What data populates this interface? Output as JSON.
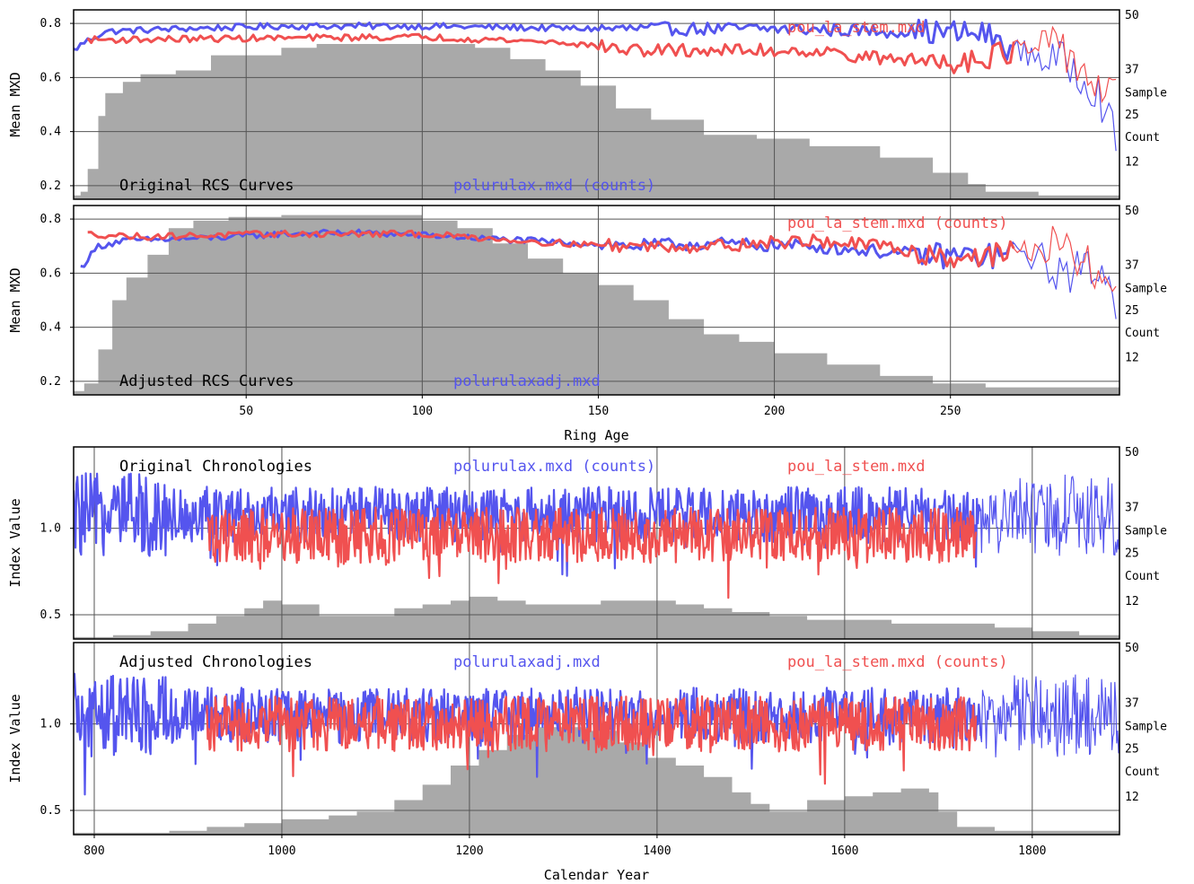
{
  "colors": {
    "blue": "#5555ee",
    "red": "#f05050",
    "gray": "#a9a9a9",
    "grid": "#555555"
  },
  "chart_data": [
    {
      "type": "line",
      "panel": "top",
      "title": "Original RCS Curves",
      "legend_blue": "polurulax.mxd (counts)",
      "legend_red": "pou_la_stem.mxd",
      "xlabel": "",
      "ylabel": "Mean MXD",
      "right_ticks": [
        "50",
        "37",
        "Sample",
        "25",
        "Count",
        "12"
      ],
      "xlim": [
        1,
        298
      ],
      "ylim": [
        0.15,
        0.85
      ],
      "yticks": [
        "0.2",
        "0.4",
        "0.6",
        "0.8"
      ],
      "count_ylim": [
        0,
        50
      ],
      "series": [
        {
          "anchors": [
            [
              1,
              0.7
            ],
            [
              4,
              0.73
            ],
            [
              10,
              0.77
            ],
            [
              30,
              0.78
            ],
            [
              60,
              0.79
            ],
            [
              100,
              0.79
            ],
            [
              150,
              0.78
            ],
            [
              200,
              0.78
            ],
            [
              240,
              0.77
            ],
            [
              260,
              0.76
            ],
            [
              268,
              0.7
            ],
            [
              275,
              0.68
            ],
            [
              285,
              0.64
            ],
            [
              292,
              0.55
            ],
            [
              297,
              0.36
            ]
          ]
        },
        {
          "anchors": [
            [
              5,
              0.74
            ],
            [
              15,
              0.74
            ],
            [
              50,
              0.745
            ],
            [
              100,
              0.75
            ],
            [
              140,
              0.73
            ],
            [
              160,
              0.7
            ],
            [
              180,
              0.7
            ],
            [
              210,
              0.7
            ],
            [
              230,
              0.67
            ],
            [
              250,
              0.66
            ],
            [
              270,
              0.7
            ],
            [
              282,
              0.71
            ],
            [
              292,
              0.56
            ],
            [
              297,
              0.53
            ]
          ]
        }
      ],
      "sample_count": [
        [
          1,
          1
        ],
        [
          3,
          2
        ],
        [
          5,
          8
        ],
        [
          8,
          22
        ],
        [
          10,
          28
        ],
        [
          15,
          31
        ],
        [
          20,
          33
        ],
        [
          30,
          34
        ],
        [
          40,
          38
        ],
        [
          60,
          40
        ],
        [
          70,
          41
        ],
        [
          80,
          41
        ],
        [
          100,
          41
        ],
        [
          115,
          40
        ],
        [
          125,
          37
        ],
        [
          135,
          34
        ],
        [
          145,
          30
        ],
        [
          155,
          24
        ],
        [
          165,
          21
        ],
        [
          180,
          17
        ],
        [
          195,
          16
        ],
        [
          210,
          14
        ],
        [
          230,
          11
        ],
        [
          245,
          7
        ],
        [
          255,
          4
        ],
        [
          260,
          2
        ],
        [
          270,
          2
        ],
        [
          275,
          1
        ],
        [
          298,
          1
        ]
      ]
    },
    {
      "type": "line",
      "panel": "second",
      "title": "Adjusted RCS Curves",
      "legend_blue": "polurulaxadj.mxd",
      "legend_red": "pou_la_stem.mxd (counts)",
      "xlabel": "Ring Age",
      "ylabel": "Mean MXD",
      "right_ticks": [
        "50",
        "37",
        "Sample",
        "25",
        "Count",
        "12"
      ],
      "xlim": [
        1,
        298
      ],
      "ylim": [
        0.15,
        0.85
      ],
      "yticks": [
        "0.2",
        "0.4",
        "0.6",
        "0.8"
      ],
      "xticks": [
        "50",
        "100",
        "150",
        "200",
        "250"
      ],
      "count_ylim": [
        0,
        50
      ],
      "series": [
        {
          "anchors": [
            [
              3,
              0.62
            ],
            [
              8,
              0.7
            ],
            [
              15,
              0.72
            ],
            [
              40,
              0.73
            ],
            [
              60,
              0.745
            ],
            [
              80,
              0.75
            ],
            [
              100,
              0.74
            ],
            [
              130,
              0.72
            ],
            [
              160,
              0.7
            ],
            [
              180,
              0.71
            ],
            [
              210,
              0.7
            ],
            [
              240,
              0.67
            ],
            [
              260,
              0.66
            ],
            [
              270,
              0.68
            ],
            [
              282,
              0.6
            ],
            [
              292,
              0.62
            ],
            [
              297,
              0.5
            ]
          ]
        },
        {
          "anchors": [
            [
              5,
              0.745
            ],
            [
              20,
              0.735
            ],
            [
              60,
              0.745
            ],
            [
              100,
              0.745
            ],
            [
              140,
              0.71
            ],
            [
              160,
              0.7
            ],
            [
              180,
              0.7
            ],
            [
              210,
              0.72
            ],
            [
              230,
              0.7
            ],
            [
              250,
              0.66
            ],
            [
              265,
              0.67
            ],
            [
              280,
              0.7
            ],
            [
              292,
              0.6
            ],
            [
              297,
              0.53
            ]
          ]
        }
      ],
      "sample_count": [
        [
          1,
          1
        ],
        [
          4,
          3
        ],
        [
          8,
          12
        ],
        [
          12,
          25
        ],
        [
          16,
          31
        ],
        [
          22,
          37
        ],
        [
          28,
          44
        ],
        [
          35,
          46
        ],
        [
          45,
          47
        ],
        [
          60,
          47.5
        ],
        [
          80,
          47.5
        ],
        [
          100,
          46
        ],
        [
          110,
          44
        ],
        [
          120,
          40
        ],
        [
          130,
          36
        ],
        [
          140,
          32
        ],
        [
          150,
          29
        ],
        [
          160,
          25
        ],
        [
          170,
          20
        ],
        [
          180,
          16
        ],
        [
          190,
          14
        ],
        [
          200,
          11
        ],
        [
          215,
          8
        ],
        [
          230,
          5
        ],
        [
          245,
          3
        ],
        [
          260,
          2
        ],
        [
          298,
          1.5
        ]
      ]
    },
    {
      "type": "line",
      "panel": "third",
      "title": "Original Chronologies",
      "legend_blue": "polurulax.mxd (counts)",
      "legend_red": "pou_la_stem.mxd",
      "xlabel": "",
      "ylabel": "Index Value",
      "right_ticks": [
        "50",
        "37",
        "Sample",
        "25",
        "Count",
        "12"
      ],
      "xlim": [
        778,
        1893
      ],
      "ylim": [
        0.36,
        1.47
      ],
      "yticks": [
        "0.5",
        "1.0"
      ],
      "count_ylim": [
        0,
        50
      ],
      "series": [
        {
          "range": [
            778,
            1893
          ],
          "base": 1.08
        },
        {
          "range": [
            920,
            1740
          ],
          "base": 0.96
        }
      ],
      "sample_count": [
        [
          778,
          0.5
        ],
        [
          820,
          1
        ],
        [
          860,
          2
        ],
        [
          900,
          4
        ],
        [
          930,
          6
        ],
        [
          960,
          8
        ],
        [
          980,
          10
        ],
        [
          1000,
          9
        ],
        [
          1040,
          6
        ],
        [
          1080,
          6
        ],
        [
          1120,
          8
        ],
        [
          1150,
          9
        ],
        [
          1180,
          10
        ],
        [
          1200,
          11
        ],
        [
          1230,
          10
        ],
        [
          1260,
          9
        ],
        [
          1300,
          9
        ],
        [
          1340,
          10
        ],
        [
          1380,
          10
        ],
        [
          1420,
          9
        ],
        [
          1450,
          8
        ],
        [
          1480,
          7
        ],
        [
          1520,
          6
        ],
        [
          1560,
          5
        ],
        [
          1600,
          5
        ],
        [
          1650,
          4
        ],
        [
          1700,
          4
        ],
        [
          1760,
          3
        ],
        [
          1800,
          2
        ],
        [
          1850,
          1
        ],
        [
          1893,
          1
        ]
      ]
    },
    {
      "type": "line",
      "panel": "bottom",
      "title": "Adjusted Chronologies",
      "legend_blue": "polurulaxadj.mxd",
      "legend_red": "pou_la_stem.mxd (counts)",
      "xlabel": "Calendar Year",
      "ylabel": "Index Value",
      "right_ticks": [
        "50",
        "37",
        "Sample",
        "25",
        "Count",
        "12"
      ],
      "xlim": [
        778,
        1893
      ],
      "ylim": [
        0.36,
        1.47
      ],
      "yticks": [
        "0.5",
        "1.0"
      ],
      "xticks": [
        "800",
        "1000",
        "1200",
        "1400",
        "1600",
        "1800"
      ],
      "count_ylim": [
        0,
        50
      ],
      "series": [
        {
          "range": [
            778,
            1893
          ],
          "base": 1.05
        },
        {
          "range": [
            920,
            1740
          ],
          "base": 1.0
        }
      ],
      "sample_count": [
        [
          778,
          0.5
        ],
        [
          880,
          1
        ],
        [
          920,
          2
        ],
        [
          960,
          3
        ],
        [
          1000,
          4
        ],
        [
          1050,
          5
        ],
        [
          1080,
          6
        ],
        [
          1120,
          9
        ],
        [
          1150,
          13
        ],
        [
          1180,
          18
        ],
        [
          1210,
          22
        ],
        [
          1240,
          26
        ],
        [
          1270,
          28
        ],
        [
          1300,
          28
        ],
        [
          1330,
          27
        ],
        [
          1360,
          24
        ],
        [
          1390,
          20
        ],
        [
          1420,
          18
        ],
        [
          1450,
          15
        ],
        [
          1480,
          11
        ],
        [
          1500,
          8
        ],
        [
          1520,
          6
        ],
        [
          1560,
          9
        ],
        [
          1600,
          10
        ],
        [
          1630,
          11
        ],
        [
          1660,
          12
        ],
        [
          1690,
          11
        ],
        [
          1700,
          6
        ],
        [
          1720,
          2
        ],
        [
          1760,
          1
        ],
        [
          1893,
          0.5
        ]
      ]
    }
  ]
}
